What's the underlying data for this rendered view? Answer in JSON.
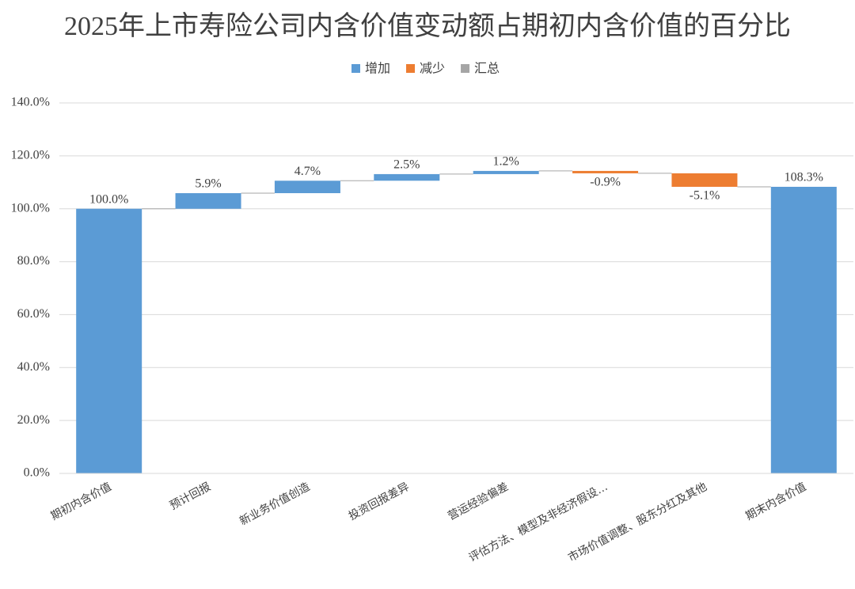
{
  "chart_data": {
    "type": "waterfall",
    "title": "2025年上市寿险公司内含价值变动额占期初内含价值的百分比",
    "categories": [
      "期初内含价值",
      "预计回报",
      "新业务价值创造",
      "投资回报差异",
      "营运经验偏差",
      "评估方法、模型及非经济假设…",
      "市场价值调整、股东分红及其他",
      "期末内含价值"
    ],
    "values": [
      100.0,
      5.9,
      4.7,
      2.5,
      1.2,
      -0.9,
      -5.1,
      108.3
    ],
    "value_labels": [
      "100.0%",
      "5.9%",
      "4.7%",
      "2.5%",
      "1.2%",
      "-0.9%",
      "-5.1%",
      "108.3%"
    ],
    "totals": [
      0,
      7
    ],
    "legend": [
      {
        "name": "增加",
        "color": "#5b9bd5"
      },
      {
        "name": "减少",
        "color": "#ed7d31"
      },
      {
        "name": "汇总",
        "color": "#a5a5a5"
      }
    ],
    "total_color": "#5b9bd5",
    "ylim": [
      0,
      140
    ],
    "yticks": [
      {
        "value": 0,
        "label": "0.0%"
      },
      {
        "value": 20,
        "label": "20.0%"
      },
      {
        "value": 40,
        "label": "40.0%"
      },
      {
        "value": 60,
        "label": "60.0%"
      },
      {
        "value": 80,
        "label": "80.0%"
      },
      {
        "value": 100,
        "label": "100.0%"
      },
      {
        "value": 120,
        "label": "120.0%"
      },
      {
        "value": 140,
        "label": "140.0%"
      }
    ],
    "grid": true
  }
}
